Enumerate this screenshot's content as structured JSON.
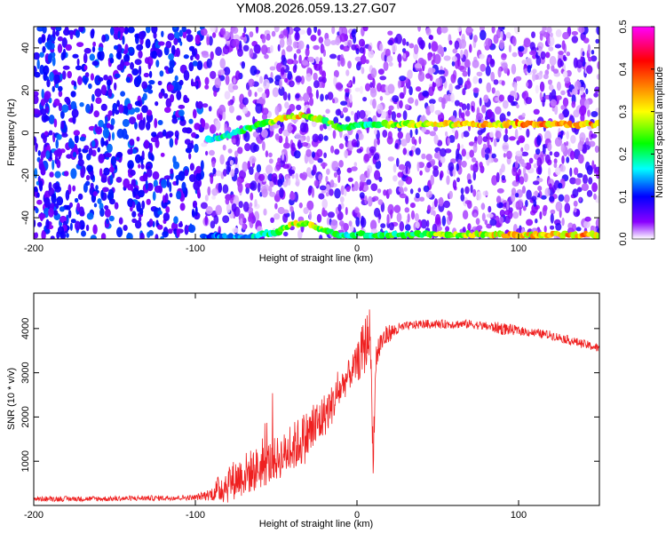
{
  "chart_data": [
    {
      "type": "heatmap",
      "title": "YM08.2026.059.13.27.G07",
      "xlabel": "Height of straight line (km)",
      "ylabel": "Frequency (Hz)",
      "xlim": [
        -200,
        150
      ],
      "ylim": [
        -50,
        50
      ],
      "xticks": [
        -200,
        -100,
        0,
        100
      ],
      "yticks": [
        -40,
        -20,
        0,
        20,
        40
      ],
      "colorbar": {
        "label": "Normalized spectral amplitude",
        "range": [
          0,
          0.5
        ],
        "ticks": [
          0,
          0.1,
          0.2,
          0.3,
          0.4,
          0.5
        ],
        "colors": [
          "#ffffff",
          "#7f00ff",
          "#0000ff",
          "#00ffff",
          "#00ff00",
          "#ffff00",
          "#ff7f00",
          "#ff0000",
          "#ff00ff"
        ]
      },
      "ridges": [
        {
          "name": "carrier",
          "x": [
            -92,
            -85,
            -75,
            -60,
            -45,
            -35,
            -25,
            -15,
            -8,
            -3,
            0,
            5,
            20,
            50,
            100,
            150
          ],
          "y": [
            -3,
            -2,
            0,
            4,
            7,
            8,
            7,
            4,
            2,
            3,
            4,
            4,
            4,
            4,
            4,
            4
          ],
          "amplitude": [
            0.15,
            0.18,
            0.2,
            0.22,
            0.3,
            0.32,
            0.28,
            0.24,
            0.22,
            0.25,
            0.25,
            0.22,
            0.26,
            0.3,
            0.35,
            0.35
          ]
        },
        {
          "name": "alias",
          "x": [
            -95,
            -70,
            -50,
            -40,
            -30,
            -20,
            -10,
            0,
            20,
            50,
            100,
            150
          ],
          "y": [
            -49,
            -49,
            -47,
            -43,
            -43,
            -46,
            -48,
            -48,
            -48,
            -48,
            -48,
            -48
          ],
          "amplitude": [
            0.12,
            0.15,
            0.22,
            0.3,
            0.3,
            0.25,
            0.2,
            0.2,
            0.22,
            0.26,
            0.33,
            0.35
          ]
        }
      ]
    },
    {
      "type": "line",
      "title": "",
      "xlabel": "Height of straight line (km)",
      "ylabel": "SNR (10 * v/v)",
      "xlim": [
        -200,
        150
      ],
      "ylim": [
        0,
        4800
      ],
      "xticks": [
        -200,
        -100,
        0,
        100
      ],
      "yticks": [
        1000,
        2000,
        3000,
        4000
      ],
      "color": "#ef2020",
      "series": [
        {
          "name": "SNR",
          "x": [
            -200,
            -180,
            -160,
            -140,
            -120,
            -100,
            -90,
            -85,
            -80,
            -75,
            -70,
            -65,
            -60,
            -55,
            -50,
            -45,
            -40,
            -35,
            -30,
            -25,
            -20,
            -15,
            -10,
            -5,
            0,
            3,
            6,
            8,
            10,
            12,
            15,
            20,
            30,
            40,
            50,
            60,
            70,
            80,
            90,
            100,
            110,
            120,
            130,
            140,
            150
          ],
          "y": [
            150,
            150,
            150,
            160,
            170,
            180,
            260,
            380,
            500,
            600,
            700,
            780,
            850,
            950,
            1050,
            1150,
            1300,
            1450,
            1600,
            1800,
            2050,
            2300,
            2650,
            2950,
            3200,
            3450,
            3700,
            4000,
            1200,
            3400,
            3700,
            3900,
            4050,
            4100,
            4100,
            4100,
            4100,
            4050,
            4000,
            3950,
            3900,
            3850,
            3750,
            3650,
            3550
          ],
          "noise": [
            60,
            60,
            60,
            60,
            60,
            60,
            150,
            350,
            450,
            450,
            500,
            500,
            500,
            500,
            500,
            500,
            550,
            600,
            600,
            600,
            500,
            450,
            400,
            350,
            400,
            600,
            700,
            500,
            500,
            400,
            300,
            200,
            100,
            100,
            100,
            100,
            100,
            100,
            150,
            100,
            100,
            100,
            100,
            100,
            100
          ]
        }
      ]
    }
  ]
}
